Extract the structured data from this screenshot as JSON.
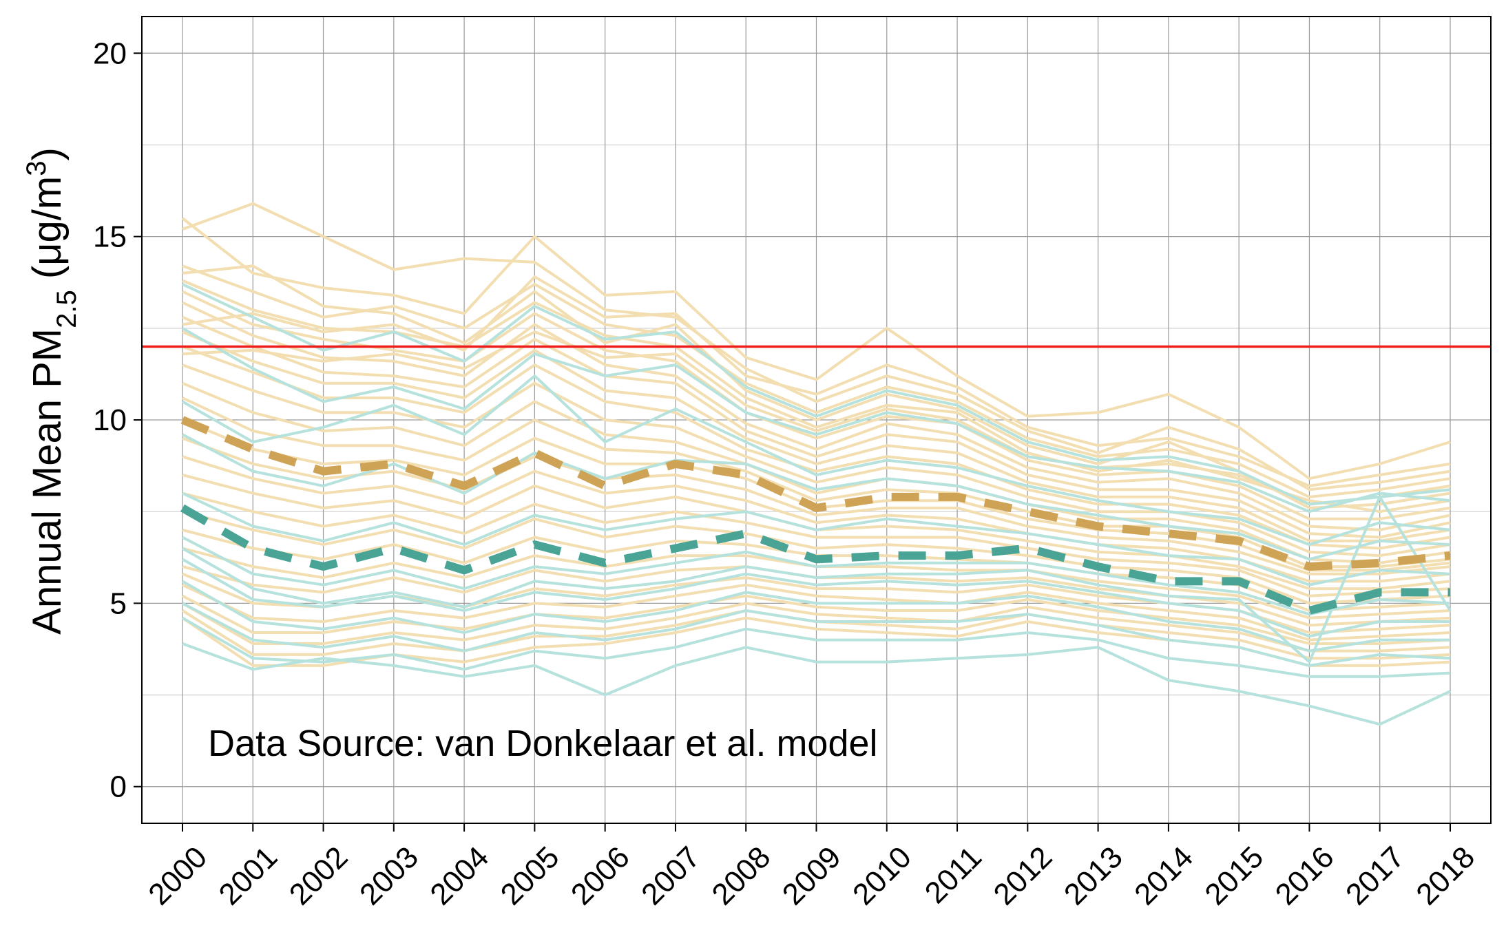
{
  "chart_data": {
    "type": "line",
    "ylabel": "Annual Mean PM2.5 (μg/m3)",
    "ylabel_parts": {
      "main": "Annual Mean PM",
      "subscript": "2.5",
      "unit_open": " (μg/m",
      "superscript": "3",
      "unit_close": ")"
    },
    "annotation": "Data Source: van Donkelaar et al. model",
    "x": [
      2000,
      2001,
      2002,
      2003,
      2004,
      2005,
      2006,
      2007,
      2008,
      2009,
      2010,
      2011,
      2012,
      2013,
      2014,
      2015,
      2016,
      2017,
      2018
    ],
    "xticks": [
      "2000",
      "2001",
      "2002",
      "2003",
      "2004",
      "2005",
      "2006",
      "2007",
      "2008",
      "2009",
      "2010",
      "2011",
      "2012",
      "2013",
      "2014",
      "2015",
      "2016",
      "2017",
      "2018"
    ],
    "yticks": [
      0,
      5,
      10,
      15,
      20
    ],
    "ylim": [
      -1,
      21
    ],
    "grid": true,
    "reference_line": {
      "y": 12,
      "color": "#ee1c1c"
    },
    "colors": {
      "beige_lines": "#f2deb0",
      "teal_lines": "#b5e2dc",
      "beige_mean": "#cfa356",
      "teal_mean": "#4aa496",
      "grid_major": "#9a9a9a",
      "grid_minor": "#d9d9d9"
    },
    "mean_series": [
      {
        "color": "#cfa356",
        "values": [
          10.0,
          9.2,
          8.6,
          8.8,
          8.2,
          9.1,
          8.2,
          8.8,
          8.5,
          7.6,
          7.9,
          7.9,
          7.5,
          7.1,
          6.9,
          6.7,
          6.0,
          6.1,
          6.3
        ]
      },
      {
        "color": "#4aa496",
        "values": [
          7.6,
          6.5,
          6.0,
          6.5,
          5.9,
          6.6,
          6.1,
          6.5,
          6.9,
          6.2,
          6.3,
          6.3,
          6.5,
          6.0,
          5.6,
          5.6,
          4.8,
          5.3,
          5.3
        ]
      }
    ],
    "beige_series": [
      [
        15.5,
        14.0,
        13.6,
        13.4,
        12.9,
        15.0,
        13.4,
        13.5,
        11.7,
        11.1,
        12.5,
        11.2,
        10.1,
        10.2,
        10.7,
        9.8,
        8.4,
        8.8,
        9.4
      ],
      [
        15.2,
        15.9,
        15.0,
        14.1,
        14.4,
        14.3,
        13.0,
        12.8,
        11.4,
        10.5,
        11.2,
        10.7,
        9.7,
        9.1,
        9.8,
        9.2,
        8.1,
        8.3,
        8.6
      ],
      [
        14.2,
        13.5,
        12.8,
        13.1,
        12.5,
        13.7,
        12.6,
        12.3,
        11.0,
        10.2,
        10.9,
        10.5,
        9.5,
        9.0,
        9.2,
        8.8,
        7.9,
        8.1,
        8.4
      ],
      [
        14.0,
        14.2,
        13.1,
        12.9,
        12.1,
        13.5,
        12.1,
        12.6,
        10.8,
        10.0,
        10.7,
        10.3,
        9.3,
        8.8,
        9.4,
        8.6,
        7.6,
        7.7,
        8.0
      ],
      [
        13.8,
        13.0,
        12.5,
        12.4,
        12.0,
        13.2,
        12.3,
        12.0,
        10.6,
        9.8,
        10.4,
        10.2,
        9.1,
        8.6,
        8.9,
        8.4,
        7.8,
        7.5,
        7.8
      ],
      [
        13.5,
        12.6,
        12.2,
        11.9,
        11.6,
        12.9,
        11.9,
        11.6,
        10.2,
        9.5,
        10.1,
        9.9,
        8.9,
        8.5,
        8.6,
        8.2,
        7.3,
        7.3,
        7.6
      ],
      [
        13.2,
        12.3,
        11.7,
        11.6,
        11.2,
        12.6,
        11.5,
        11.2,
        9.9,
        9.2,
        9.9,
        9.6,
        8.7,
        8.3,
        8.4,
        8.0,
        7.1,
        7.0,
        7.4
      ],
      [
        12.8,
        12.0,
        11.3,
        11.2,
        10.9,
        12.2,
        11.2,
        11.0,
        9.7,
        9.0,
        9.6,
        9.4,
        8.5,
        8.1,
        8.1,
        7.8,
        6.9,
        6.8,
        7.2
      ],
      [
        12.4,
        11.6,
        11.0,
        11.0,
        10.6,
        11.9,
        10.8,
        10.6,
        9.5,
        8.8,
        9.3,
        9.1,
        8.3,
        7.9,
        7.9,
        7.6,
        6.7,
        6.7,
        7.0
      ],
      [
        12.0,
        11.3,
        10.6,
        10.6,
        10.2,
        11.5,
        10.5,
        10.2,
        9.2,
        8.6,
        9.0,
        8.8,
        8.1,
        7.7,
        7.7,
        7.4,
        6.6,
        6.5,
        6.8
      ],
      [
        11.5,
        10.8,
        10.2,
        10.2,
        9.8,
        11.0,
        10.0,
        9.8,
        9.0,
        8.3,
        8.7,
        8.5,
        7.9,
        7.5,
        7.5,
        7.2,
        6.4,
        6.3,
        6.6
      ],
      [
        11.0,
        10.2,
        9.7,
        9.8,
        9.3,
        10.5,
        9.6,
        9.4,
        8.8,
        8.0,
        8.4,
        8.2,
        7.7,
        7.3,
        7.3,
        7.0,
        6.2,
        6.1,
        6.4
      ],
      [
        10.6,
        9.7,
        9.3,
        9.3,
        8.9,
        10.0,
        9.2,
        9.1,
        8.6,
        7.8,
        8.1,
        8.0,
        7.5,
        7.1,
        7.1,
        6.8,
        6.0,
        6.0,
        6.2
      ],
      [
        10.0,
        9.2,
        8.8,
        8.9,
        8.5,
        9.5,
        8.8,
        8.8,
        8.4,
        7.6,
        7.8,
        7.8,
        7.3,
        7.0,
        6.9,
        6.6,
        5.9,
        5.9,
        6.1
      ],
      [
        9.5,
        8.8,
        8.4,
        8.6,
        8.1,
        9.0,
        8.4,
        8.5,
        8.1,
        7.4,
        7.6,
        7.6,
        7.1,
        6.8,
        6.7,
        6.4,
        5.8,
        5.8,
        6.0
      ],
      [
        9.0,
        8.4,
        8.0,
        8.2,
        7.7,
        8.6,
        8.0,
        8.2,
        7.8,
        7.2,
        7.4,
        7.3,
        6.9,
        6.6,
        6.5,
        6.2,
        5.6,
        5.6,
        5.8
      ],
      [
        8.5,
        8.0,
        7.6,
        7.8,
        7.3,
        8.2,
        7.6,
        7.9,
        7.5,
        7.0,
        7.1,
        7.0,
        6.7,
        6.4,
        6.3,
        6.0,
        5.4,
        5.4,
        5.6
      ],
      [
        8.0,
        7.5,
        7.1,
        7.4,
        6.9,
        7.7,
        7.2,
        7.5,
        7.2,
        6.8,
        6.8,
        6.8,
        6.5,
        6.2,
        6.1,
        5.9,
        5.2,
        5.3,
        5.4
      ],
      [
        7.5,
        7.0,
        6.6,
        7.0,
        6.5,
        7.3,
        6.8,
        7.1,
        6.9,
        6.5,
        6.6,
        6.5,
        6.3,
        6.0,
        5.9,
        5.7,
        5.0,
        5.1,
        5.2
      ],
      [
        7.0,
        6.5,
        6.2,
        6.6,
        6.1,
        6.8,
        6.4,
        6.7,
        6.6,
        6.3,
        6.3,
        6.2,
        6.1,
        5.8,
        5.7,
        5.5,
        4.8,
        4.9,
        5.0
      ],
      [
        6.5,
        6.0,
        5.7,
        6.1,
        5.7,
        6.3,
        6.0,
        6.3,
        6.3,
        6.0,
        6.0,
        5.9,
        5.9,
        5.6,
        5.4,
        5.2,
        4.6,
        4.7,
        4.8
      ],
      [
        6.0,
        5.5,
        5.3,
        5.7,
        5.3,
        5.9,
        5.6,
        5.9,
        6.0,
        5.7,
        5.7,
        5.6,
        5.7,
        5.4,
        5.2,
        5.0,
        4.4,
        4.5,
        4.6
      ],
      [
        5.8,
        5.0,
        4.9,
        5.2,
        4.9,
        5.4,
        5.2,
        5.5,
        5.7,
        5.4,
        5.4,
        5.3,
        5.5,
        5.2,
        5.0,
        4.8,
        4.2,
        4.3,
        4.4
      ],
      [
        5.5,
        4.6,
        4.5,
        4.8,
        4.6,
        5.0,
        4.9,
        5.2,
        5.5,
        5.2,
        5.1,
        5.0,
        5.3,
        5.0,
        4.8,
        4.6,
        4.0,
        4.1,
        4.2
      ],
      [
        5.2,
        4.2,
        4.2,
        4.5,
        4.3,
        4.7,
        4.6,
        4.9,
        5.2,
        4.9,
        4.8,
        4.8,
        5.1,
        4.8,
        4.6,
        4.4,
        3.9,
        3.9,
        4.0
      ],
      [
        5.0,
        3.9,
        3.9,
        4.2,
        4.0,
        4.4,
        4.3,
        4.6,
        5.0,
        4.7,
        4.6,
        4.5,
        4.9,
        4.6,
        4.4,
        4.2,
        3.7,
        3.7,
        3.8
      ],
      [
        4.8,
        3.6,
        3.6,
        3.9,
        3.7,
        4.1,
        4.1,
        4.4,
        4.8,
        4.5,
        4.4,
        4.3,
        4.7,
        4.4,
        4.2,
        4.0,
        3.5,
        3.5,
        3.6
      ],
      [
        4.6,
        3.3,
        3.3,
        3.6,
        3.4,
        3.8,
        3.9,
        4.2,
        4.6,
        4.3,
        4.2,
        4.1,
        4.5,
        4.2,
        4.0,
        3.8,
        3.3,
        3.3,
        3.4
      ],
      [
        12.6,
        12.9,
        12.4,
        12.6,
        11.9,
        13.9,
        12.8,
        12.9,
        11.2,
        10.7,
        11.5,
        10.9,
        9.8,
        9.3,
        9.5,
        9.0,
        8.2,
        8.5,
        8.8
      ],
      [
        11.8,
        11.9,
        11.6,
        11.8,
        11.4,
        12.4,
        11.7,
        11.8,
        10.4,
        9.7,
        10.3,
        10.0,
        9.0,
        8.7,
        8.8,
        8.5,
        7.7,
        7.9,
        8.2
      ]
    ],
    "teal_series": [
      [
        13.7,
        12.8,
        11.9,
        12.4,
        11.6,
        13.1,
        12.2,
        12.4,
        10.9,
        10.1,
        10.8,
        10.4,
        9.4,
        8.9,
        9.0,
        8.6,
        7.7,
        7.9,
        8.1
      ],
      [
        12.5,
        11.4,
        10.5,
        10.9,
        10.3,
        11.8,
        11.2,
        11.5,
        10.2,
        9.6,
        10.2,
        9.9,
        9.0,
        8.7,
        8.6,
        8.3,
        7.5,
        8.0,
        7.8
      ],
      [
        10.5,
        9.4,
        9.8,
        10.4,
        9.6,
        11.2,
        9.4,
        10.3,
        9.4,
        8.5,
        8.9,
        8.7,
        8.2,
        7.8,
        7.5,
        7.3,
        6.6,
        7.2,
        7.0
      ],
      [
        9.6,
        8.6,
        8.2,
        8.8,
        8.0,
        9.1,
        8.4,
        8.9,
        8.8,
        8.1,
        8.4,
        8.2,
        7.7,
        7.4,
        7.1,
        6.9,
        6.2,
        6.7,
        6.6
      ],
      [
        8.0,
        7.1,
        6.7,
        7.2,
        6.6,
        7.4,
        7.0,
        7.3,
        7.5,
        7.0,
        7.3,
        7.1,
        6.9,
        6.6,
        6.3,
        6.2,
        5.5,
        5.9,
        5.8
      ],
      [
        6.8,
        5.8,
        5.5,
        5.9,
        5.4,
        6.0,
        5.8,
        6.1,
        6.4,
        6.0,
        6.1,
        6.1,
        6.1,
        5.8,
        5.5,
        5.3,
        4.7,
        5.1,
        5.0
      ],
      [
        6.2,
        5.1,
        4.9,
        5.2,
        4.8,
        5.3,
        5.1,
        5.4,
        5.8,
        5.5,
        5.6,
        5.5,
        5.6,
        5.3,
        5.0,
        4.8,
        4.1,
        4.5,
        4.5
      ],
      [
        5.6,
        4.5,
        4.3,
        4.6,
        4.2,
        4.7,
        4.5,
        4.8,
        5.3,
        5.0,
        5.0,
        5.0,
        5.2,
        4.9,
        4.5,
        4.3,
        3.7,
        4.0,
        4.0
      ],
      [
        5.0,
        4.0,
        3.8,
        4.1,
        3.7,
        4.2,
        4.0,
        4.3,
        4.8,
        4.5,
        4.5,
        4.5,
        4.7,
        4.4,
        4.0,
        3.8,
        3.3,
        3.6,
        3.5
      ],
      [
        4.6,
        3.5,
        3.4,
        3.6,
        3.2,
        3.7,
        3.5,
        3.8,
        4.3,
        4.0,
        4.0,
        4.0,
        4.2,
        4.0,
        3.5,
        3.3,
        3.0,
        3.0,
        3.1
      ],
      [
        3.9,
        3.2,
        3.5,
        3.3,
        3.0,
        3.3,
        2.5,
        3.3,
        3.8,
        3.4,
        3.4,
        3.5,
        3.6,
        3.8,
        2.9,
        2.6,
        2.2,
        1.7,
        2.6
      ],
      [
        6.5,
        5.4,
        5.0,
        5.3,
        4.9,
        5.6,
        5.4,
        5.6,
        6.0,
        5.7,
        5.8,
        5.8,
        5.9,
        5.5,
        5.2,
        5.1,
        3.4,
        7.9,
        4.8
      ]
    ]
  }
}
